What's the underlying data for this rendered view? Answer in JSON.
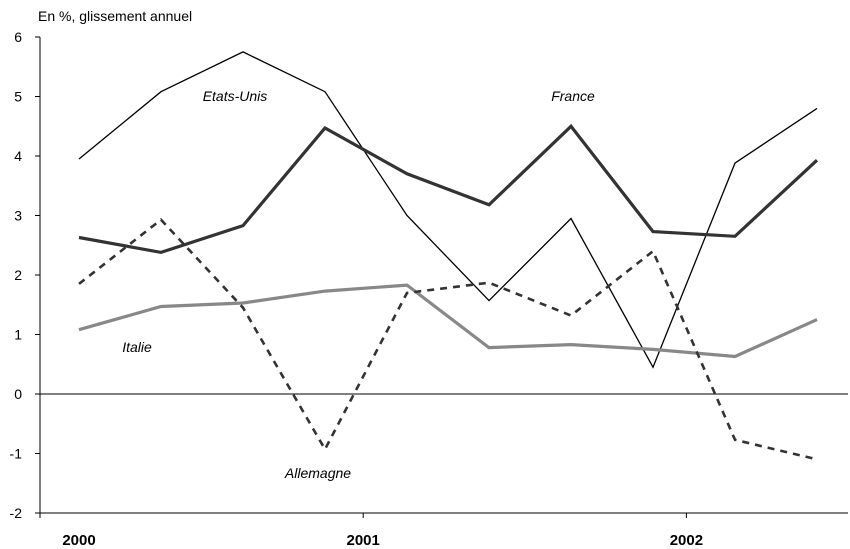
{
  "chart_data": {
    "type": "line",
    "unit_label": "En %, glissement annuel",
    "ylim": [
      -2,
      6
    ],
    "yticks": [
      -2,
      -1,
      0,
      1,
      2,
      3,
      4,
      5,
      6
    ],
    "xlim": [
      2000,
      2002.5
    ],
    "xticks": [
      2000,
      2001,
      2002
    ],
    "xtick_labels": [
      "2000",
      "2001",
      "2002"
    ],
    "grid": false,
    "x": [
      2000.0,
      2000.25,
      2000.5,
      2000.75,
      2001.0,
      2001.25,
      2001.5,
      2001.75,
      2002.0,
      2002.25
    ],
    "series": [
      {
        "name": "Etats-Unis",
        "color": "#000000",
        "style": "thin-solid",
        "values": [
          3.95,
          5.08,
          5.75,
          5.08,
          3.0,
          1.57,
          2.95,
          0.45,
          3.88,
          4.8
        ]
      },
      {
        "name": "France",
        "color": "#333333",
        "style": "thick-solid",
        "values": [
          2.63,
          2.38,
          2.83,
          4.47,
          3.7,
          3.18,
          4.5,
          2.73,
          2.65,
          3.93
        ]
      },
      {
        "name": "Italie",
        "color": "#888888",
        "style": "thick-solid",
        "values": [
          1.08,
          1.47,
          1.53,
          1.73,
          1.83,
          0.78,
          0.83,
          0.75,
          0.63,
          1.25
        ]
      },
      {
        "name": "Allemagne",
        "color": "#333333",
        "style": "dashed",
        "values": [
          1.85,
          2.93,
          1.45,
          -0.93,
          1.7,
          1.87,
          1.32,
          2.4,
          -0.77,
          -1.1
        ]
      }
    ],
    "annotations": [
      {
        "text": "Etats-Unis",
        "series": "Etats-Unis"
      },
      {
        "text": "France",
        "series": "France"
      },
      {
        "text": "Italie",
        "series": "Italie"
      },
      {
        "text": "Allemagne",
        "series": "Allemagne"
      }
    ]
  }
}
